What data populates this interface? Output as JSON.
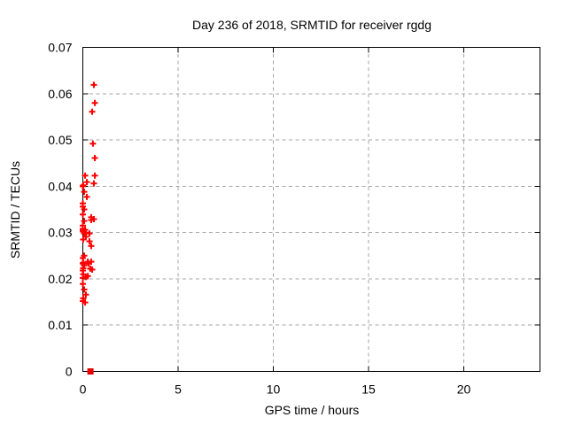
{
  "figure": {
    "background": "#ffffff",
    "axis_color": "#000000",
    "text_color": "#000000"
  },
  "chart_data": {
    "type": "scatter",
    "title": "Day 236 of 2018, SRMTID for receiver rgdg",
    "xlabel": "GPS time / hours",
    "ylabel": "SRMTID / TECUs",
    "xlim": [
      0,
      24
    ],
    "ylim": [
      0,
      0.07
    ],
    "xticks": [
      {
        "value": 0,
        "label": "0"
      },
      {
        "value": 5,
        "label": "5"
      },
      {
        "value": 10,
        "label": "10"
      },
      {
        "value": 15,
        "label": "15"
      },
      {
        "value": 20,
        "label": "20"
      }
    ],
    "yticks": [
      {
        "value": 0.0,
        "label": "0"
      },
      {
        "value": 0.01,
        "label": "0.01"
      },
      {
        "value": 0.02,
        "label": "0.02"
      },
      {
        "value": 0.03,
        "label": "0.03"
      },
      {
        "value": 0.04,
        "label": "0.04"
      },
      {
        "value": 0.05,
        "label": "0.05"
      },
      {
        "value": 0.06,
        "label": "0.06"
      },
      {
        "value": 0.07,
        "label": "0.07"
      }
    ],
    "grid": {
      "enabled": true,
      "style": "dashed",
      "color": "#a6a6a6"
    },
    "legend": "none",
    "series": [
      {
        "name": "srmtid-values",
        "marker": "plus",
        "color": "#ff0000",
        "size": 7,
        "points": [
          [
            0.58,
            0.0619
          ],
          [
            0.63,
            0.058
          ],
          [
            0.49,
            0.0561
          ],
          [
            0.53,
            0.0492
          ],
          [
            0.63,
            0.0461
          ],
          [
            0.12,
            0.0423
          ],
          [
            0.63,
            0.0423
          ],
          [
            0.21,
            0.0409
          ],
          [
            0.58,
            0.0406
          ],
          [
            0.02,
            0.0402
          ],
          [
            0.0,
            0.04
          ],
          [
            0.07,
            0.0388
          ],
          [
            0.21,
            0.0377
          ],
          [
            0.0,
            0.0363
          ],
          [
            0.0,
            0.0356
          ],
          [
            0.07,
            0.035
          ],
          [
            0.0,
            0.0339
          ],
          [
            0.44,
            0.0333
          ],
          [
            0.58,
            0.0329
          ],
          [
            0.44,
            0.0327
          ],
          [
            0.07,
            0.0325
          ],
          [
            0.0,
            0.0315
          ],
          [
            0.0,
            0.0308
          ],
          [
            0.12,
            0.0306
          ],
          [
            0.0,
            0.0304
          ],
          [
            0.02,
            0.0302
          ],
          [
            0.16,
            0.03
          ],
          [
            0.07,
            0.0298
          ],
          [
            0.35,
            0.0298
          ],
          [
            0.16,
            0.0291
          ],
          [
            0.02,
            0.0285
          ],
          [
            0.35,
            0.0281
          ],
          [
            0.44,
            0.0271
          ],
          [
            0.07,
            0.025
          ],
          [
            0.0,
            0.0245
          ],
          [
            0.26,
            0.0237
          ],
          [
            0.44,
            0.0237
          ],
          [
            0.02,
            0.0235
          ],
          [
            0.3,
            0.0233
          ],
          [
            0.0,
            0.0233
          ],
          [
            0.07,
            0.0229
          ],
          [
            0.02,
            0.0223
          ],
          [
            0.39,
            0.0222
          ],
          [
            0.49,
            0.022
          ],
          [
            0.0,
            0.0218
          ],
          [
            0.02,
            0.021
          ],
          [
            0.26,
            0.0206
          ],
          [
            0.16,
            0.0204
          ],
          [
            0.0,
            0.0202
          ],
          [
            0.0,
            0.0189
          ],
          [
            0.07,
            0.0177
          ],
          [
            0.16,
            0.0166
          ],
          [
            0.02,
            0.0158
          ],
          [
            0.0,
            0.0152
          ],
          [
            0.12,
            0.0149
          ]
        ]
      },
      {
        "name": "zero-value-flag",
        "marker": "filled-square",
        "color": "#e60000",
        "size": 7,
        "points": [
          [
            0.4,
            0.0
          ]
        ]
      }
    ]
  }
}
